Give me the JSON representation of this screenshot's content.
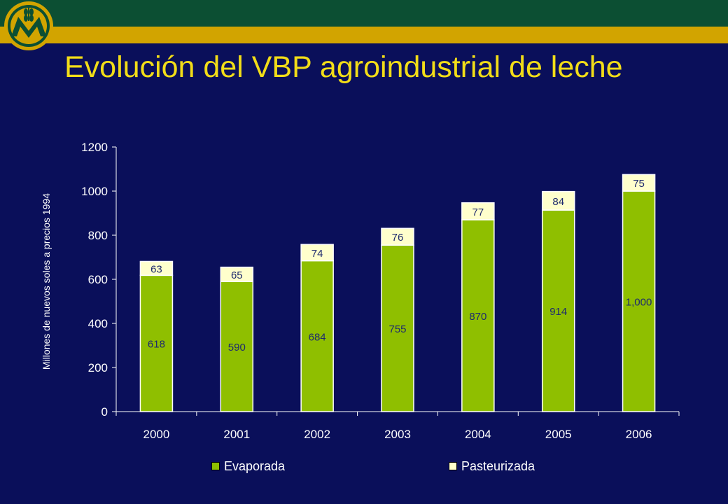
{
  "slide": {
    "title": "Evolución del VBP agroindustrial de leche"
  },
  "colors": {
    "background": "#0a0f5a",
    "top_band": "#0c4f33",
    "gold_band": "#d2a400",
    "title": "#f2dd18",
    "evaporada": "#8fbf00",
    "pasteurizada": "#ffffcc"
  },
  "icons": {
    "logo": "wheat-emblem-logo-icon"
  },
  "chart_data": {
    "type": "bar",
    "stacked": true,
    "categories": [
      "2000",
      "2001",
      "2002",
      "2003",
      "2004",
      "2005",
      "2006"
    ],
    "series": [
      {
        "name": "Evaporada",
        "values": [
          618,
          590,
          684,
          755,
          870,
          914,
          1000
        ],
        "labels": [
          "618",
          "590",
          "684",
          "755",
          "870",
          "914",
          "1,000"
        ],
        "color": "#8fbf00"
      },
      {
        "name": "Pasteurizada",
        "values": [
          63,
          65,
          74,
          76,
          77,
          84,
          75
        ],
        "labels": [
          "63",
          "65",
          "74",
          "76",
          "77",
          "84",
          "75"
        ],
        "color": "#ffffcc"
      }
    ],
    "ylabel": "Millones de nuevos soles a precios 1994",
    "xlabel": "",
    "ylim": [
      0,
      1200
    ],
    "yticks": [
      0,
      200,
      400,
      600,
      800,
      1000,
      1200
    ],
    "legend_position": "bottom",
    "grid": false
  }
}
